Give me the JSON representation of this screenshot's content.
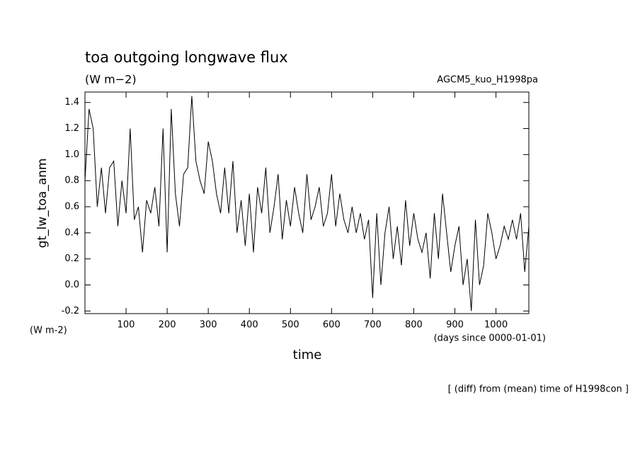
{
  "chart_data": {
    "type": "line",
    "title": "toa outgoing longwave flux",
    "subtitle": "(W m−2)",
    "run_label": "AGCM5_kuo_H1998pa",
    "y_label": "gt_lw_toa_anm",
    "y_unit": "(W m-2)",
    "x_unit": "(days since 0000-01-01)",
    "x_label": "time",
    "annotation": "[ (diff) from (mean) time of H1998con ]",
    "xlim": [
      0,
      1080
    ],
    "ylim": [
      -0.22,
      1.48
    ],
    "xticks": [
      100,
      200,
      300,
      400,
      500,
      600,
      700,
      800,
      900,
      1000
    ],
    "yticks": [
      -0.2,
      {
        "value": 0,
        "label": "0.0"
      },
      0.2,
      0.4,
      0.6,
      0.8,
      {
        "value": 1,
        "label": "1.0"
      },
      1.2,
      1.4
    ],
    "x": [
      0,
      10,
      20,
      30,
      40,
      50,
      60,
      70,
      80,
      90,
      100,
      110,
      120,
      130,
      140,
      150,
      160,
      170,
      180,
      190,
      200,
      210,
      220,
      230,
      240,
      250,
      260,
      270,
      280,
      290,
      300,
      310,
      320,
      330,
      340,
      350,
      360,
      370,
      380,
      390,
      400,
      410,
      420,
      430,
      440,
      450,
      460,
      470,
      480,
      490,
      500,
      510,
      520,
      530,
      540,
      550,
      560,
      570,
      580,
      590,
      600,
      610,
      620,
      630,
      640,
      650,
      660,
      670,
      680,
      690,
      700,
      710,
      720,
      730,
      740,
      750,
      760,
      770,
      780,
      790,
      800,
      810,
      820,
      830,
      840,
      850,
      860,
      870,
      880,
      890,
      900,
      910,
      920,
      930,
      940,
      950,
      960,
      970,
      980,
      990,
      1000,
      1010,
      1020,
      1030,
      1040,
      1050,
      1060,
      1070,
      1080
    ],
    "series": [
      {
        "name": "gt_lw_toa_anm",
        "color": "#000000",
        "values": [
          0.8,
          1.35,
          1.2,
          0.6,
          0.9,
          0.55,
          0.9,
          0.95,
          0.45,
          0.8,
          0.55,
          1.2,
          0.5,
          0.6,
          0.25,
          0.65,
          0.55,
          0.75,
          0.45,
          1.2,
          0.25,
          1.35,
          0.7,
          0.45,
          0.85,
          0.9,
          1.45,
          0.95,
          0.8,
          0.7,
          1.1,
          0.95,
          0.7,
          0.55,
          0.9,
          0.55,
          0.95,
          0.4,
          0.65,
          0.3,
          0.7,
          0.25,
          0.75,
          0.55,
          0.9,
          0.4,
          0.6,
          0.85,
          0.35,
          0.65,
          0.45,
          0.75,
          0.55,
          0.4,
          0.85,
          0.5,
          0.6,
          0.75,
          0.45,
          0.55,
          0.85,
          0.45,
          0.7,
          0.5,
          0.4,
          0.6,
          0.4,
          0.55,
          0.35,
          0.5,
          -0.1,
          0.55,
          0.0,
          0.4,
          0.6,
          0.2,
          0.45,
          0.15,
          0.65,
          0.3,
          0.55,
          0.35,
          0.25,
          0.4,
          0.05,
          0.55,
          0.2,
          0.7,
          0.4,
          0.1,
          0.3,
          0.45,
          0.0,
          0.2,
          -0.2,
          0.5,
          0.0,
          0.15,
          0.55,
          0.4,
          0.2,
          0.3,
          0.45,
          0.35,
          0.5,
          0.35,
          0.55,
          0.1,
          0.45
        ]
      }
    ]
  }
}
